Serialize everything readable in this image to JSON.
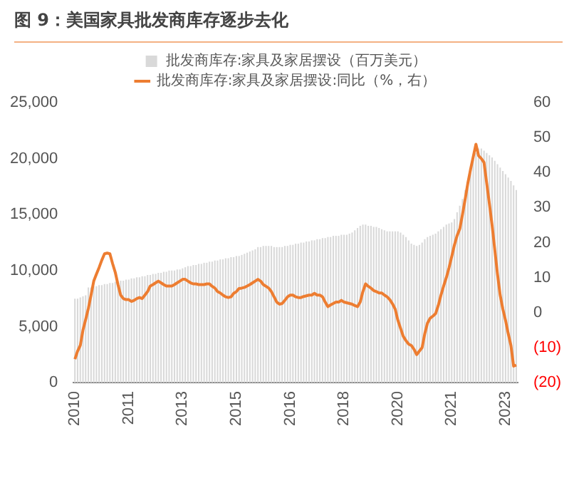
{
  "chart_data": {
    "type": "bar",
    "title": "图 9：美国家具批发商库存逐步去化",
    "categories": [
      "2010",
      null,
      null,
      null,
      null,
      null,
      null,
      null,
      null,
      null,
      null,
      null,
      null,
      null,
      null,
      null,
      null,
      null,
      null,
      null,
      "2011",
      null,
      null,
      null,
      null,
      null,
      null,
      null,
      null,
      null,
      null,
      null,
      null,
      null,
      null,
      null,
      null,
      null,
      null,
      null,
      "2013",
      null,
      null,
      null,
      null,
      null,
      null,
      null,
      null,
      null,
      null,
      null,
      null,
      null,
      null,
      null,
      null,
      null,
      null,
      null,
      "2015",
      null,
      null,
      null,
      null,
      null,
      null,
      null,
      null,
      null,
      null,
      null,
      null,
      null,
      null,
      null,
      null,
      null,
      null,
      null,
      "2016",
      null,
      null,
      null,
      null,
      null,
      null,
      null,
      null,
      null,
      null,
      null,
      null,
      null,
      null,
      null,
      null,
      null,
      null,
      null,
      "2018",
      null,
      null,
      null,
      null,
      null,
      null,
      null,
      null,
      null,
      null,
      null,
      null,
      null,
      null,
      null,
      null,
      null,
      null,
      null,
      "2020",
      null,
      null,
      null,
      null,
      null,
      null,
      null,
      null,
      null,
      null,
      null,
      null,
      null,
      null,
      null,
      null,
      null,
      null,
      null,
      "2021",
      null,
      null,
      null,
      null,
      null,
      null,
      null,
      null,
      null,
      null,
      null,
      null,
      null,
      null,
      null,
      null,
      null,
      null,
      null,
      "2023",
      null,
      null,
      null,
      null
    ],
    "series": [
      {
        "name": "批发商库存:家具及家居摆设（百万美元）",
        "color": "#d9d9d9",
        "values": [
          7500,
          7500,
          7600,
          7700,
          7800,
          8500,
          8500,
          8600,
          8600,
          8700,
          8700,
          8800,
          8800,
          8900,
          8900,
          9000,
          9000,
          9100,
          9100,
          9200,
          9200,
          9300,
          9300,
          9400,
          9400,
          9500,
          9500,
          9600,
          9600,
          9700,
          9700,
          9800,
          9800,
          9900,
          9900,
          10000,
          10000,
          10000,
          10100,
          10100,
          10200,
          10300,
          10400,
          10400,
          10500,
          10500,
          10600,
          10600,
          10700,
          10700,
          10800,
          10800,
          10900,
          10900,
          11000,
          11000,
          11100,
          11100,
          11200,
          11200,
          11300,
          11300,
          11400,
          11500,
          11600,
          11700,
          11800,
          11900,
          12100,
          12100,
          12200,
          12200,
          12200,
          12200,
          12100,
          12100,
          12100,
          12100,
          12200,
          12200,
          12300,
          12300,
          12400,
          12400,
          12500,
          12500,
          12600,
          12600,
          12700,
          12700,
          12800,
          12800,
          12900,
          12900,
          13000,
          13000,
          13100,
          13100,
          13100,
          13200,
          13200,
          13200,
          13300,
          13400,
          13600,
          13800,
          14000,
          14100,
          14100,
          14000,
          14000,
          13900,
          13900,
          13800,
          13700,
          13600,
          13500,
          13500,
          13500,
          13500,
          13500,
          13400,
          13200,
          13000,
          12700,
          12400,
          12300,
          12200,
          12300,
          12500,
          12800,
          13000,
          13100,
          13200,
          13300,
          13500,
          13700,
          13900,
          14100,
          14200,
          14300,
          14600,
          15200,
          15800,
          16400,
          17200,
          18000,
          19000,
          20000,
          20500,
          20900,
          20900,
          20700,
          20500,
          20300,
          20100,
          19800,
          19500,
          19200,
          18900,
          18600,
          18300,
          18000,
          17600,
          17200
        ]
      },
      {
        "name": "批发商库存:家具及家居摆设:同比（%，右）",
        "type": "line",
        "axis": "y2",
        "color": "#ed7d31",
        "values": [
          -13.3,
          -11,
          -9.4,
          -5,
          -2,
          1.2,
          5,
          9,
          11,
          12.9,
          15,
          16.8,
          17,
          16.8,
          14,
          11.5,
          8,
          5,
          4,
          3.7,
          3.7,
          3.2,
          3.5,
          4,
          4.3,
          4,
          5,
          6,
          7.6,
          8,
          8.5,
          9,
          8.5,
          8,
          7.6,
          7.6,
          7.6,
          8,
          8.5,
          9,
          9.5,
          9.5,
          9,
          8.5,
          8.2,
          8.2,
          8,
          8,
          8,
          8.2,
          8.2,
          7.5,
          7,
          6,
          5.6,
          5,
          4.5,
          4.3,
          4.5,
          5.5,
          6,
          6.9,
          7,
          7.2,
          7.6,
          8,
          8.5,
          9,
          9.5,
          9,
          8,
          7.5,
          7,
          6,
          4.5,
          3,
          2.4,
          2.6,
          3.5,
          4.5,
          5,
          5,
          4.5,
          4.3,
          4.3,
          4.6,
          4.8,
          5,
          5,
          5.5,
          5,
          5,
          4.5,
          3,
          1.7,
          2.2,
          2.6,
          3,
          3,
          3.5,
          3,
          2.8,
          2.6,
          2.4,
          2,
          1.7,
          3,
          6,
          8.2,
          7.5,
          7,
          6.3,
          6,
          5.6,
          5.6,
          5,
          4.5,
          3.7,
          2.5,
          1,
          -2.2,
          -4.5,
          -6.8,
          -8,
          -9,
          -9.4,
          -10.5,
          -12,
          -11,
          -10,
          -6,
          -3,
          -1.6,
          -1,
          -0.3,
          2,
          5,
          7.6,
          10,
          12.8,
          16,
          19.3,
          22,
          23.9,
          28,
          32.4,
          37,
          40.9,
          44.5,
          48.1,
          44.8,
          44,
          42.9,
          37,
          31.1,
          25,
          18,
          11,
          5,
          1,
          -2.2,
          -6,
          -9.4,
          -15.3,
          -15
        ]
      }
    ],
    "ylim": [
      0,
      25000
    ],
    "yticks": [
      0,
      {
        "value": 5000,
        "label": "5,000"
      },
      {
        "value": 10000,
        "label": "10,000"
      },
      {
        "value": 15000,
        "label": "15,000"
      },
      {
        "value": 20000,
        "label": "20,000"
      },
      {
        "value": 25000,
        "label": "25,000"
      }
    ],
    "y2lim": [
      -20,
      60
    ],
    "y2ticks": [
      {
        "value": -20,
        "label": "(20)"
      },
      {
        "value": -10,
        "label": "(10)"
      },
      0,
      10,
      20,
      30,
      40,
      50,
      60
    ],
    "legend": "top",
    "marker": "none"
  }
}
